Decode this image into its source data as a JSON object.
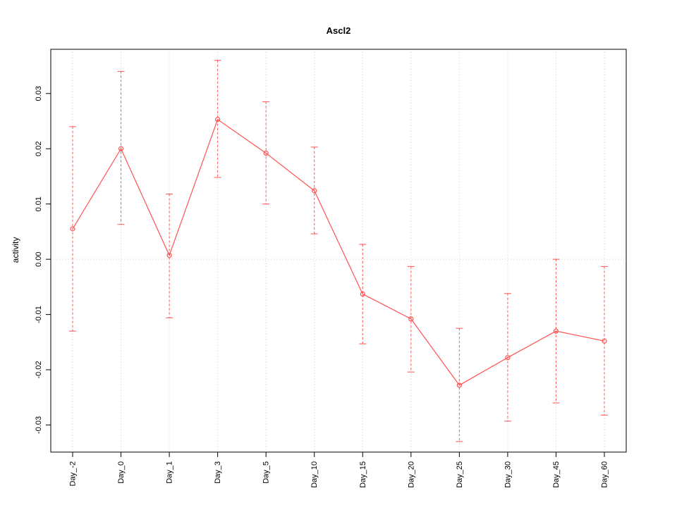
{
  "chart_data": {
    "type": "line",
    "title": "Ascl2",
    "xlabel": "",
    "ylabel": "activity",
    "categories": [
      "Day_-2",
      "Day_0",
      "Day_1",
      "Day_3",
      "Day_5",
      "Day_10",
      "Day_15",
      "Day_20",
      "Day_25",
      "Day_30",
      "Day_45",
      "Day_60"
    ],
    "series": [
      {
        "name": "activity",
        "values": [
          0.0055,
          0.02,
          0.0007,
          0.0253,
          0.0192,
          0.0124,
          -0.0063,
          -0.0108,
          -0.0228,
          -0.0178,
          -0.013,
          -0.0148
        ],
        "error_low": [
          -0.013,
          0.0063,
          -0.0106,
          0.0148,
          0.01,
          0.0046,
          -0.0153,
          -0.0204,
          -0.033,
          -0.0293,
          -0.026,
          -0.0282
        ],
        "error_high": [
          0.024,
          0.034,
          0.0118,
          0.036,
          0.0285,
          0.0203,
          0.0027,
          -0.0013,
          -0.0125,
          -0.0062,
          0.0,
          -0.0013
        ]
      }
    ],
    "yticks": [
      -0.03,
      -0.02,
      -0.01,
      0,
      0.01,
      0.02,
      0.03
    ],
    "ylim": [
      -0.0349,
      0.038
    ],
    "grid": "dotted vertical at each category, dotted horizontal at zero",
    "legend_position": "none",
    "colors": {
      "line": "#ff5252",
      "grid": "#cccccc",
      "box": "#000000"
    }
  }
}
